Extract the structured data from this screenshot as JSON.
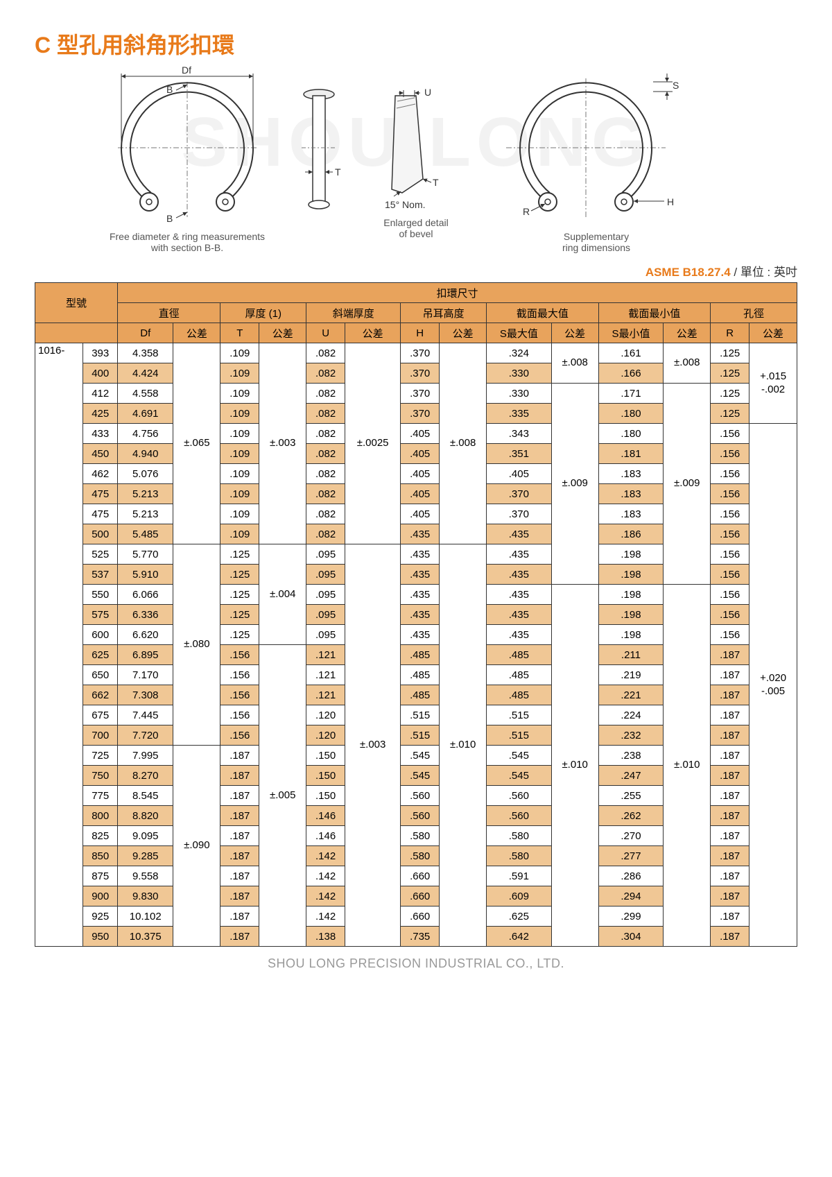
{
  "title": "C 型孔用斜角形扣環",
  "watermark": "SHOU LONG",
  "diagram": {
    "labels": {
      "Df": "Df",
      "B": "B",
      "T": "T",
      "U": "U",
      "S": "S",
      "R": "R",
      "H": "H",
      "angle": "15° Nom."
    },
    "captions": {
      "left": "Free diameter & ring measurements\nwith section B-B.",
      "mid": "Enlarged detail\nof bevel",
      "right": "Supplementary\nring dimensions"
    }
  },
  "standard": {
    "code": "ASME B18.27.4",
    "unit_label": " / 單位 : 英吋"
  },
  "table": {
    "top_header": "扣環尺寸",
    "group_headers": [
      "型號",
      "直徑",
      "厚度 (1)",
      "斜端厚度",
      "吊耳高度",
      "截面最大值",
      "截面最小值",
      "孔徑"
    ],
    "sub_headers": [
      "Df",
      "公差",
      "T",
      "公差",
      "U",
      "公差",
      "H",
      "公差",
      "S最大值",
      "公差",
      "S最小值",
      "公差",
      "R",
      "公差"
    ],
    "series_prefix": "1016-",
    "rows": [
      {
        "n": "393",
        "Df": "4.358",
        "T": ".109",
        "U": ".082",
        "H": ".370",
        "Smax": ".324",
        "Smin": ".161",
        "R": ".125"
      },
      {
        "n": "400",
        "Df": "4.424",
        "T": ".109",
        "U": ".082",
        "H": ".370",
        "Smax": ".330",
        "Smin": ".166",
        "R": ".125"
      },
      {
        "n": "412",
        "Df": "4.558",
        "T": ".109",
        "U": ".082",
        "H": ".370",
        "Smax": ".330",
        "Smin": ".171",
        "R": ".125"
      },
      {
        "n": "425",
        "Df": "4.691",
        "T": ".109",
        "U": ".082",
        "H": ".370",
        "Smax": ".335",
        "Smin": ".180",
        "R": ".125"
      },
      {
        "n": "433",
        "Df": "4.756",
        "T": ".109",
        "U": ".082",
        "H": ".405",
        "Smax": ".343",
        "Smin": ".180",
        "R": ".156"
      },
      {
        "n": "450",
        "Df": "4.940",
        "T": ".109",
        "U": ".082",
        "H": ".405",
        "Smax": ".351",
        "Smin": ".181",
        "R": ".156"
      },
      {
        "n": "462",
        "Df": "5.076",
        "T": ".109",
        "U": ".082",
        "H": ".405",
        "Smax": ".405",
        "Smin": ".183",
        "R": ".156"
      },
      {
        "n": "475",
        "Df": "5.213",
        "T": ".109",
        "U": ".082",
        "H": ".405",
        "Smax": ".370",
        "Smin": ".183",
        "R": ".156"
      },
      {
        "n": "475",
        "Df": "5.213",
        "T": ".109",
        "U": ".082",
        "H": ".405",
        "Smax": ".370",
        "Smin": ".183",
        "R": ".156"
      },
      {
        "n": "500",
        "Df": "5.485",
        "T": ".109",
        "U": ".082",
        "H": ".435",
        "Smax": ".435",
        "Smin": ".186",
        "R": ".156"
      },
      {
        "n": "525",
        "Df": "5.770",
        "T": ".125",
        "U": ".095",
        "H": ".435",
        "Smax": ".435",
        "Smin": ".198",
        "R": ".156"
      },
      {
        "n": "537",
        "Df": "5.910",
        "T": ".125",
        "U": ".095",
        "H": ".435",
        "Smax": ".435",
        "Smin": ".198",
        "R": ".156"
      },
      {
        "n": "550",
        "Df": "6.066",
        "T": ".125",
        "U": ".095",
        "H": ".435",
        "Smax": ".435",
        "Smin": ".198",
        "R": ".156"
      },
      {
        "n": "575",
        "Df": "6.336",
        "T": ".125",
        "U": ".095",
        "H": ".435",
        "Smax": ".435",
        "Smin": ".198",
        "R": ".156"
      },
      {
        "n": "600",
        "Df": "6.620",
        "T": ".125",
        "U": ".095",
        "H": ".435",
        "Smax": ".435",
        "Smin": ".198",
        "R": ".156"
      },
      {
        "n": "625",
        "Df": "6.895",
        "T": ".156",
        "U": ".121",
        "H": ".485",
        "Smax": ".485",
        "Smin": ".211",
        "R": ".187"
      },
      {
        "n": "650",
        "Df": "7.170",
        "T": ".156",
        "U": ".121",
        "H": ".485",
        "Smax": ".485",
        "Smin": ".219",
        "R": ".187"
      },
      {
        "n": "662",
        "Df": "7.308",
        "T": ".156",
        "U": ".121",
        "H": ".485",
        "Smax": ".485",
        "Smin": ".221",
        "R": ".187"
      },
      {
        "n": "675",
        "Df": "7.445",
        "T": ".156",
        "U": ".120",
        "H": ".515",
        "Smax": ".515",
        "Smin": ".224",
        "R": ".187"
      },
      {
        "n": "700",
        "Df": "7.720",
        "T": ".156",
        "U": ".120",
        "H": ".515",
        "Smax": ".515",
        "Smin": ".232",
        "R": ".187"
      },
      {
        "n": "725",
        "Df": "7.995",
        "T": ".187",
        "U": ".150",
        "H": ".545",
        "Smax": ".545",
        "Smin": ".238",
        "R": ".187"
      },
      {
        "n": "750",
        "Df": "8.270",
        "T": ".187",
        "U": ".150",
        "H": ".545",
        "Smax": ".545",
        "Smin": ".247",
        "R": ".187"
      },
      {
        "n": "775",
        "Df": "8.545",
        "T": ".187",
        "U": ".150",
        "H": ".560",
        "Smax": ".560",
        "Smin": ".255",
        "R": ".187"
      },
      {
        "n": "800",
        "Df": "8.820",
        "T": ".187",
        "U": ".146",
        "H": ".560",
        "Smax": ".560",
        "Smin": ".262",
        "R": ".187"
      },
      {
        "n": "825",
        "Df": "9.095",
        "T": ".187",
        "U": ".146",
        "H": ".580",
        "Smax": ".580",
        "Smin": ".270",
        "R": ".187"
      },
      {
        "n": "850",
        "Df": "9.285",
        "T": ".187",
        "U": ".142",
        "H": ".580",
        "Smax": ".580",
        "Smin": ".277",
        "R": ".187"
      },
      {
        "n": "875",
        "Df": "9.558",
        "T": ".187",
        "U": ".142",
        "H": ".660",
        "Smax": ".591",
        "Smin": ".286",
        "R": ".187"
      },
      {
        "n": "900",
        "Df": "9.830",
        "T": ".187",
        "U": ".142",
        "H": ".660",
        "Smax": ".609",
        "Smin": ".294",
        "R": ".187"
      },
      {
        "n": "925",
        "Df": "10.102",
        "T": ".187",
        "U": ".142",
        "H": ".660",
        "Smax": ".625",
        "Smin": ".299",
        "R": ".187"
      },
      {
        "n": "950",
        "Df": "10.375",
        "T": ".187",
        "U": ".138",
        "H": ".735",
        "Smax": ".642",
        "Smin": ".304",
        "R": ".187"
      }
    ],
    "tolerances": {
      "Df": [
        {
          "span": 30,
          "val": ""
        }
      ],
      "DfLabel": [
        {
          "span": 10,
          "val": "±.065"
        },
        {
          "span": 10,
          "val": "±.080"
        },
        {
          "span": 10,
          "val": "±.090"
        }
      ],
      "T": [
        {
          "span": 10,
          "val": "±.003"
        },
        {
          "span": 5,
          "val": "±.004"
        },
        {
          "span": 15,
          "val": "±.005"
        }
      ],
      "U": [
        {
          "span": 10,
          "val": "±.0025"
        },
        {
          "span": 20,
          "val": "±.003"
        }
      ],
      "H": [
        {
          "span": 10,
          "val": "±.008"
        },
        {
          "span": 20,
          "val": "±.010"
        }
      ],
      "Smax": [
        {
          "span": 2,
          "val": "±.008"
        },
        {
          "span": 10,
          "val": "±.009"
        },
        {
          "span": 18,
          "val": "±.010"
        }
      ],
      "Smin": [
        {
          "span": 2,
          "val": "±.008"
        },
        {
          "span": 10,
          "val": "±.009"
        },
        {
          "span": 18,
          "val": "±.010"
        }
      ],
      "R": [
        {
          "span": 4,
          "val": "+.015\n-.002"
        },
        {
          "span": 26,
          "val": "+.020\n-.005"
        }
      ]
    }
  },
  "footer": "SHOU LONG PRECISION INDUSTRIAL CO., LTD."
}
